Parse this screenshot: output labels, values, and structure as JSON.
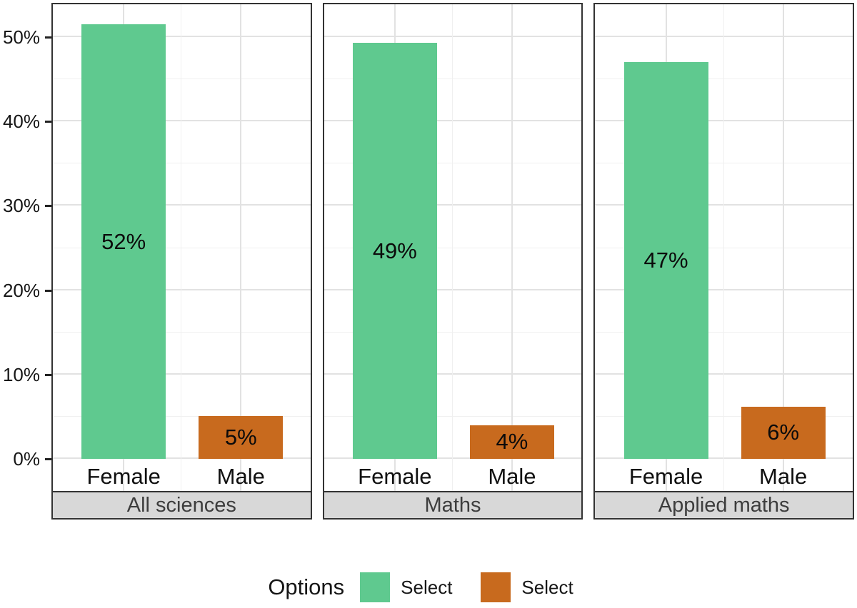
{
  "chart_data": {
    "type": "bar",
    "title": "",
    "x_categories": [
      "Female",
      "Male"
    ],
    "y_axis": {
      "ticks": [
        "0%",
        "10%",
        "20%",
        "30%",
        "40%",
        "50%"
      ],
      "range_percent": [
        0,
        50
      ],
      "major_step_percent": 10,
      "minor_step_percent": 5,
      "grid": "on"
    },
    "series": [
      {
        "name": "Select",
        "color": "#5FC98F"
      },
      {
        "name": "Select",
        "color": "#C86A1E"
      }
    ],
    "facets": [
      {
        "label": "All sciences",
        "values": [
          51.5,
          5.1
        ],
        "value_labels": [
          "52%",
          "5%"
        ]
      },
      {
        "label": "Maths",
        "values": [
          49.3,
          4.0
        ],
        "value_labels": [
          "49%",
          "4%"
        ]
      },
      {
        "label": "Applied maths",
        "values": [
          47.0,
          6.2
        ],
        "value_labels": [
          "47%",
          "6%"
        ]
      }
    ],
    "legend": {
      "title": "Options",
      "position": "bottom",
      "items": [
        {
          "label": "Select",
          "color": "#5FC98F"
        },
        {
          "label": "Select",
          "color": "#C86A1E"
        }
      ]
    }
  },
  "colors": {
    "panel_border": "#333333",
    "strip_background": "#D8D8D8",
    "strip_text": "#3D3D3D",
    "grid_major": "#E2E2E2",
    "grid_minor": "#F0F0F0",
    "axis_text": "#161616"
  }
}
